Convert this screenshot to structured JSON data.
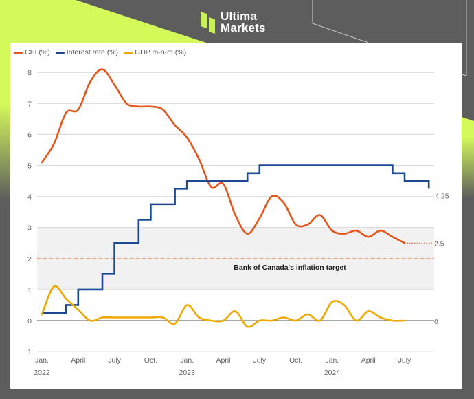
{
  "brand": {
    "line1": "Ultima",
    "line2": "Markets"
  },
  "colors": {
    "cpi": "#e8541a",
    "interest": "#1a4a94",
    "gdp": "#f0a800",
    "accent": "#d4fa5a",
    "background": "#5d5d5d"
  },
  "chart_data": {
    "type": "line",
    "title": "",
    "xlabel": "",
    "ylabel": "",
    "ylim": [
      -1,
      8
    ],
    "grid": true,
    "legend_position": "top-left",
    "yticks": [
      "−1",
      "0",
      "1",
      "2",
      "3",
      "4",
      "5",
      "6",
      "7",
      "8"
    ],
    "ytick_values": [
      -1,
      0,
      1,
      2,
      3,
      4,
      5,
      6,
      7,
      8
    ],
    "xticks": [
      {
        "month_index": 0,
        "label": "Jan.",
        "year": "2022"
      },
      {
        "month_index": 3,
        "label": "April",
        "year": ""
      },
      {
        "month_index": 6,
        "label": "July",
        "year": ""
      },
      {
        "month_index": 9,
        "label": "Oct.",
        "year": ""
      },
      {
        "month_index": 12,
        "label": "Jan.",
        "year": "2023"
      },
      {
        "month_index": 15,
        "label": "April",
        "year": ""
      },
      {
        "month_index": 18,
        "label": "July",
        "year": ""
      },
      {
        "month_index": 21,
        "label": "Oct.",
        "year": ""
      },
      {
        "month_index": 24,
        "label": "Jan.",
        "year": "2024"
      },
      {
        "month_index": 27,
        "label": "April",
        "year": ""
      },
      {
        "month_index": 30,
        "label": "July",
        "year": ""
      }
    ],
    "target_band": [
      1,
      3
    ],
    "target_line": 2,
    "target_label": "Bank of Canada's inflation target",
    "series": [
      {
        "name": "CPI (%)",
        "key": "cpi",
        "style": "smooth",
        "values": [
          5.1,
          5.7,
          6.7,
          6.8,
          7.7,
          8.1,
          7.6,
          7.0,
          6.9,
          6.9,
          6.8,
          6.3,
          5.9,
          5.2,
          4.3,
          4.4,
          3.4,
          2.8,
          3.3,
          4.0,
          3.8,
          3.1,
          3.1,
          3.4,
          2.9,
          2.8,
          2.9,
          2.7,
          2.9,
          2.7,
          2.5
        ],
        "end_label": "2.5"
      },
      {
        "name": "Interest rate (%)",
        "key": "interest",
        "style": "step",
        "steps": [
          [
            0,
            0.25
          ],
          [
            2,
            0.5
          ],
          [
            3,
            1.0
          ],
          [
            5,
            1.5
          ],
          [
            6,
            2.5
          ],
          [
            8,
            3.25
          ],
          [
            9,
            3.75
          ],
          [
            11,
            4.25
          ],
          [
            12,
            4.5
          ],
          [
            17,
            4.75
          ],
          [
            18,
            5.0
          ],
          [
            29,
            4.75
          ],
          [
            30,
            4.5
          ],
          [
            32,
            4.25
          ]
        ],
        "end_label": "4.25"
      },
      {
        "name": "GDP m-o-m (%)",
        "key": "gdp",
        "style": "smooth",
        "values": [
          0.2,
          1.1,
          0.7,
          0.35,
          0.0,
          0.1,
          0.1,
          0.1,
          0.1,
          0.1,
          0.1,
          -0.1,
          0.5,
          0.1,
          0.0,
          0.0,
          0.3,
          -0.2,
          0.0,
          0.0,
          0.1,
          0.0,
          0.2,
          0.0,
          0.6,
          0.5,
          0.0,
          0.3,
          0.1,
          0.0,
          0.0
        ],
        "end_label": "0"
      }
    ]
  }
}
